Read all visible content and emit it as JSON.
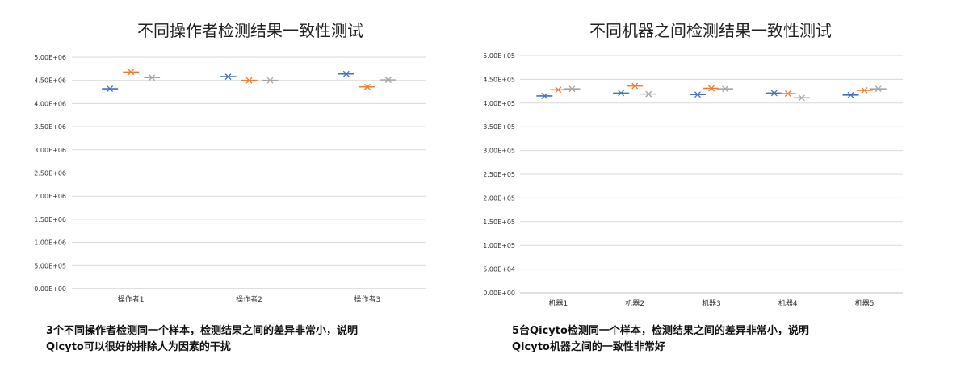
{
  "chart_data": [
    {
      "type": "scatter",
      "title": "不同操作者检测结果一致性测试",
      "categories": [
        "操作者1",
        "操作者2",
        "操作者3"
      ],
      "ylim": [
        0,
        5000000
      ],
      "yticks": [
        "0.00E+00",
        "5.00E+05",
        "1.00E+06",
        "1.50E+06",
        "2.00E+06",
        "2.50E+06",
        "3.00E+06",
        "3.50E+06",
        "4.00E+06",
        "4.50E+06",
        "5.00E+06"
      ],
      "grid": true,
      "series": [
        {
          "color": "#4472C4",
          "values": [
            4320000,
            4580000,
            4640000
          ]
        },
        {
          "color": "#ED7D31",
          "values": [
            4680000,
            4500000,
            4360000
          ]
        },
        {
          "color": "#A5A5A5",
          "values": [
            4560000,
            4500000,
            4510000
          ]
        }
      ]
    },
    {
      "type": "scatter",
      "title": "不同机器之间检测结果一致性测试",
      "categories": [
        "机器1",
        "机器2",
        "机器3",
        "机器4",
        "机器5"
      ],
      "ylim": [
        0,
        500000
      ],
      "yticks": [
        "0.00E+00",
        "5.00E+04",
        "1.00E+05",
        "1.50E+05",
        "2.00E+05",
        "2.50E+05",
        "3.00E+05",
        "3.50E+05",
        "4.00E+05",
        "4.50E+05",
        "5.00E+05"
      ],
      "grid": true,
      "series": [
        {
          "color": "#4472C4",
          "values": [
            415000,
            421000,
            418000,
            421000,
            417000
          ]
        },
        {
          "color": "#ED7D31",
          "values": [
            428000,
            436000,
            431000,
            420000,
            427000
          ]
        },
        {
          "color": "#A5A5A5",
          "values": [
            430000,
            419000,
            430000,
            411000,
            430000
          ]
        }
      ]
    }
  ],
  "captions": [
    [
      "3个不同操作者检测同一个样本，检测结果之间的差异非常小，说明",
      "Qicyto可以很好的排除人为因素的干扰"
    ],
    [
      "5台Qicyto检测同一个样本，检测结果之间的差异非常小，说明",
      "Qicyto机器之间的一致性非常好"
    ]
  ]
}
